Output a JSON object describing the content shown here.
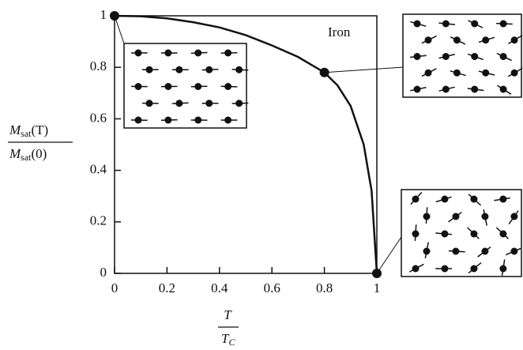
{
  "chart_data": {
    "type": "line",
    "annotation": "Iron",
    "ylabel": {
      "numerator": {
        "symbol": "M",
        "sub": "sat",
        "rest": "(T)"
      },
      "denominator": {
        "symbol": "M",
        "sub": "sat",
        "rest": "(0)"
      }
    },
    "xlabel": {
      "numerator": "T",
      "denominator": {
        "symbol": "T",
        "sub": "C"
      }
    },
    "x": [
      0,
      0.1,
      0.2,
      0.3,
      0.4,
      0.5,
      0.6,
      0.7,
      0.8,
      0.85,
      0.9,
      0.95,
      0.98,
      1
    ],
    "values": [
      1,
      0.998,
      0.99,
      0.975,
      0.955,
      0.925,
      0.885,
      0.84,
      0.78,
      0.73,
      0.65,
      0.5,
      0.32,
      0
    ],
    "color": "#111111",
    "highlight": {
      "x": [
        0,
        0.8,
        1
      ],
      "values": [
        1,
        0.78,
        0
      ]
    },
    "xlim": [
      0,
      1
    ],
    "ylim": [
      0,
      1
    ],
    "xticks": [
      0,
      0.2,
      0.4,
      0.6,
      0.8,
      1
    ],
    "yticks": [
      0,
      0.2,
      0.4,
      0.6,
      0.8,
      1
    ]
  }
}
